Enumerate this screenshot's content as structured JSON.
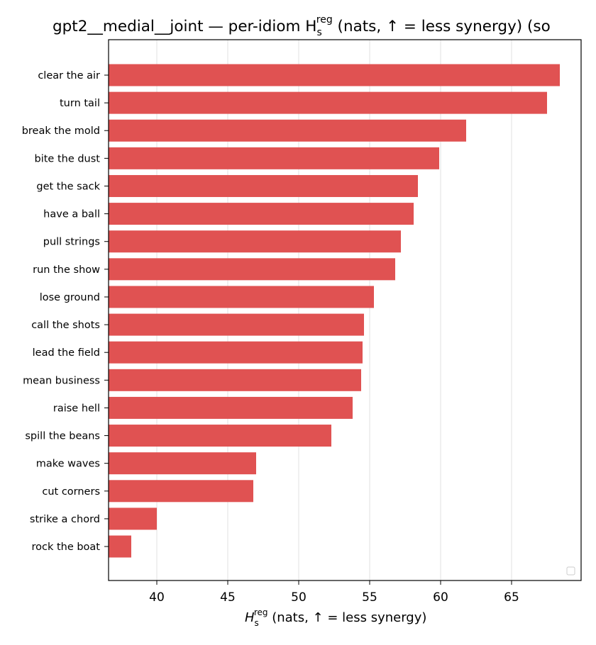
{
  "chart_data": {
    "type": "bar",
    "orientation": "horizontal",
    "title": "gpt2__medial__joint — per-idiom H",
    "title_sub": "s",
    "title_sup": "reg",
    "title_rest": " (nats, ↑ = less synergy) (so",
    "xlabel": "H",
    "xlabel_sub": "s",
    "xlabel_sup": "reg",
    "xlabel_rest": " (nats, ↑ = less synergy)",
    "ylabel": "",
    "xlim": [
      36.6,
      69.9
    ],
    "xticks": [
      40,
      45,
      50,
      55,
      60,
      65
    ],
    "grid": "vertical",
    "legend": "lower-right (empty)",
    "bar_color": "#e05252",
    "categories": [
      "clear the air",
      "turn tail",
      "break the mold",
      "bite the dust",
      "get the sack",
      "have a ball",
      "pull strings",
      "run the show",
      "lose ground",
      "call the shots",
      "lead the field",
      "mean business",
      "raise hell",
      "spill the beans",
      "make waves",
      "cut corners",
      "strike a chord",
      "rock the boat"
    ],
    "values": [
      68.4,
      67.5,
      61.8,
      59.9,
      58.4,
      58.1,
      57.2,
      56.8,
      55.3,
      54.6,
      54.5,
      54.4,
      53.8,
      52.3,
      47.0,
      46.8,
      40.0,
      38.2
    ]
  }
}
